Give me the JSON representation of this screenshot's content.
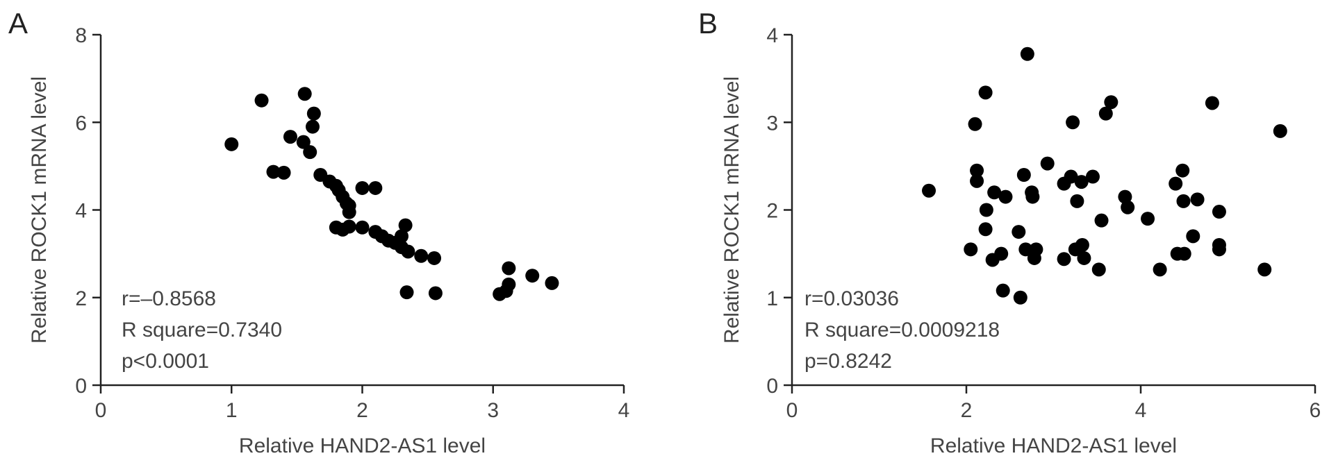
{
  "chart_data": [
    {
      "type": "scatter",
      "panel_label": "A",
      "xlabel": "Relative HAND2-AS1 level",
      "ylabel": "Relative ROCK1 mRNA level",
      "xlim": [
        0,
        4
      ],
      "ylim": [
        0,
        8
      ],
      "xticks": [
        "0",
        "1",
        "2",
        "3",
        "4"
      ],
      "yticks": [
        "0",
        "2",
        "4",
        "6",
        "8"
      ],
      "grid": false,
      "stats": [
        "r=–0.8568",
        "R square=0.7340",
        "p<0.0001"
      ],
      "points": [
        [
          1.0,
          5.5
        ],
        [
          1.23,
          6.5
        ],
        [
          1.32,
          4.87
        ],
        [
          1.4,
          4.85
        ],
        [
          1.45,
          5.67
        ],
        [
          1.55,
          5.55
        ],
        [
          1.56,
          6.65
        ],
        [
          1.6,
          5.32
        ],
        [
          1.62,
          5.9
        ],
        [
          1.63,
          6.2
        ],
        [
          1.68,
          4.8
        ],
        [
          1.75,
          4.65
        ],
        [
          1.8,
          4.55
        ],
        [
          1.82,
          4.45
        ],
        [
          1.85,
          4.3
        ],
        [
          1.88,
          4.15
        ],
        [
          1.9,
          4.1
        ],
        [
          1.9,
          3.95
        ],
        [
          1.8,
          3.6
        ],
        [
          1.85,
          3.55
        ],
        [
          1.9,
          3.62
        ],
        [
          2.0,
          3.6
        ],
        [
          2.0,
          4.5
        ],
        [
          2.1,
          4.5
        ],
        [
          2.1,
          3.5
        ],
        [
          2.15,
          3.4
        ],
        [
          2.2,
          3.3
        ],
        [
          2.25,
          3.25
        ],
        [
          2.3,
          3.15
        ],
        [
          2.3,
          3.4
        ],
        [
          2.33,
          3.65
        ],
        [
          2.35,
          3.05
        ],
        [
          2.45,
          2.95
        ],
        [
          2.55,
          2.9
        ],
        [
          2.34,
          2.12
        ],
        [
          2.56,
          2.1
        ],
        [
          3.05,
          2.08
        ],
        [
          3.1,
          2.15
        ],
        [
          3.12,
          2.3
        ],
        [
          3.12,
          2.67
        ],
        [
          3.3,
          2.5
        ],
        [
          3.45,
          2.33
        ]
      ]
    },
    {
      "type": "scatter",
      "panel_label": "B",
      "xlabel": "Relative HAND2-AS1 level",
      "ylabel": "Relative ROCK1 mRNA level",
      "xlim": [
        0,
        6
      ],
      "ylim": [
        0,
        4
      ],
      "xticks": [
        "0",
        "2",
        "4",
        "6"
      ],
      "yticks": [
        "0",
        "1",
        "2",
        "3",
        "4"
      ],
      "grid": false,
      "stats": [
        "r=0.03036",
        "R square=0.0009218",
        "p=0.8242"
      ],
      "points": [
        [
          1.57,
          2.22
        ],
        [
          2.05,
          1.55
        ],
        [
          2.1,
          2.98
        ],
        [
          2.12,
          2.45
        ],
        [
          2.12,
          2.33
        ],
        [
          2.22,
          3.34
        ],
        [
          2.22,
          1.78
        ],
        [
          2.23,
          2.0
        ],
        [
          2.3,
          1.43
        ],
        [
          2.32,
          2.2
        ],
        [
          2.4,
          1.5
        ],
        [
          2.42,
          1.08
        ],
        [
          2.45,
          2.15
        ],
        [
          2.6,
          1.75
        ],
        [
          2.62,
          1.0
        ],
        [
          2.66,
          2.4
        ],
        [
          2.68,
          1.55
        ],
        [
          2.7,
          3.78
        ],
        [
          2.75,
          2.2
        ],
        [
          2.76,
          2.15
        ],
        [
          2.78,
          1.45
        ],
        [
          2.8,
          1.55
        ],
        [
          2.93,
          2.53
        ],
        [
          3.12,
          2.3
        ],
        [
          3.12,
          1.44
        ],
        [
          3.2,
          2.38
        ],
        [
          3.22,
          3.0
        ],
        [
          3.25,
          1.55
        ],
        [
          3.27,
          2.1
        ],
        [
          3.32,
          2.32
        ],
        [
          3.33,
          1.6
        ],
        [
          3.35,
          1.45
        ],
        [
          3.45,
          2.38
        ],
        [
          3.52,
          1.32
        ],
        [
          3.55,
          1.88
        ],
        [
          3.6,
          3.1
        ],
        [
          3.66,
          3.23
        ],
        [
          3.82,
          2.15
        ],
        [
          3.85,
          2.03
        ],
        [
          4.08,
          1.9
        ],
        [
          4.22,
          1.32
        ],
        [
          4.4,
          2.3
        ],
        [
          4.42,
          1.5
        ],
        [
          4.48,
          2.45
        ],
        [
          4.49,
          2.1
        ],
        [
          4.5,
          1.5
        ],
        [
          4.6,
          1.7
        ],
        [
          4.65,
          2.12
        ],
        [
          4.82,
          3.22
        ],
        [
          4.9,
          1.98
        ],
        [
          4.9,
          1.6
        ],
        [
          4.9,
          1.55
        ],
        [
          5.42,
          1.32
        ],
        [
          5.6,
          2.9
        ]
      ]
    }
  ]
}
